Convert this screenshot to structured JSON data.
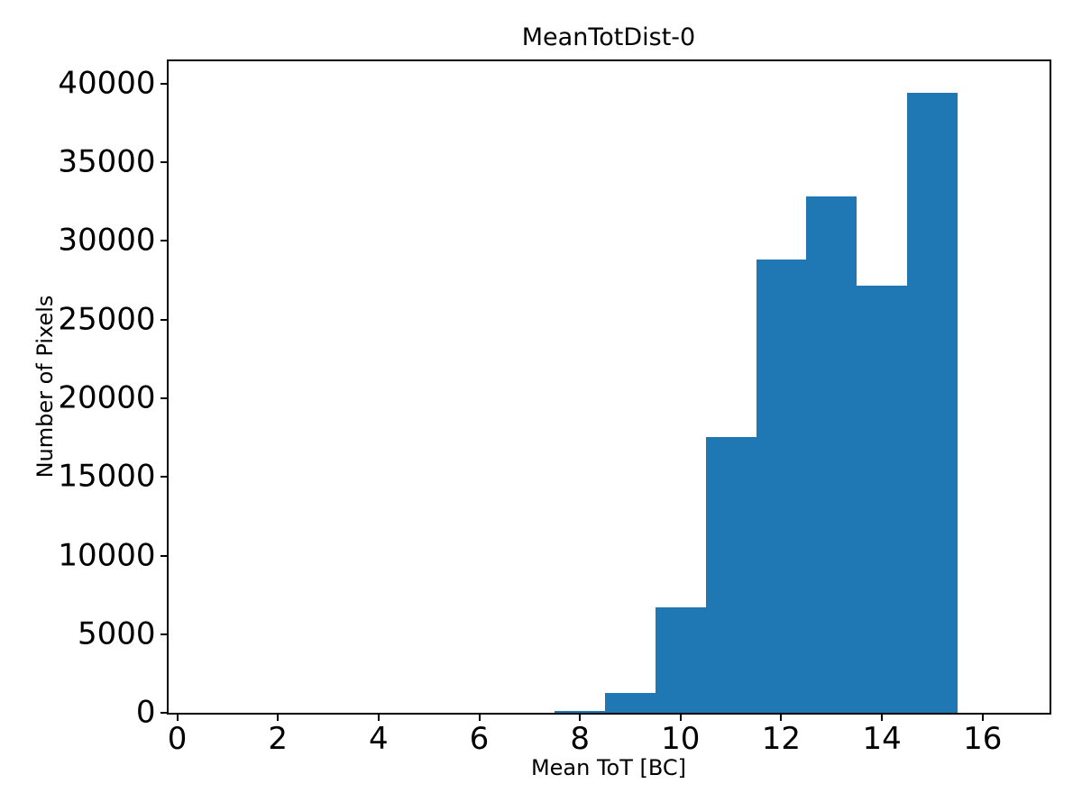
{
  "figure": {
    "background": "#ffffff",
    "text_color": "#000000"
  },
  "chart_data": {
    "type": "bar",
    "subtype": "histogram",
    "title": "MeanTotDist-0",
    "xlabel": "Mean ToT [BC]",
    "ylabel": "Number of Pixels",
    "bin_edges": [
      7.5,
      8.5,
      9.5,
      10.5,
      11.5,
      12.5,
      13.5,
      14.5,
      15.5
    ],
    "values": [
      130,
      1270,
      6740,
      17550,
      28800,
      32840,
      27170,
      39410
    ],
    "bar_color": "#1f77b4",
    "axis_color": "#000000",
    "xlim": [
      -0.18,
      17.33
    ],
    "ylim": [
      0,
      41450
    ],
    "xticks": [
      0,
      2,
      4,
      6,
      8,
      10,
      12,
      14,
      16
    ],
    "yticks": [
      0,
      5000,
      10000,
      15000,
      20000,
      25000,
      30000,
      35000,
      40000
    ],
    "grid": false,
    "legend_position": "none"
  }
}
